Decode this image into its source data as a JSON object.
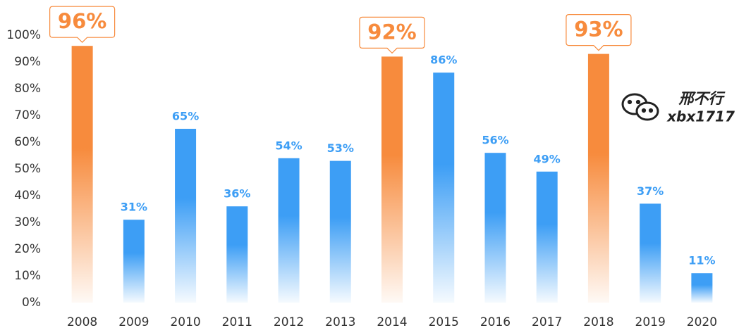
{
  "chart_data": {
    "type": "bar",
    "categories": [
      "2008",
      "2009",
      "2010",
      "2011",
      "2012",
      "2013",
      "2014",
      "2015",
      "2016",
      "2017",
      "2018",
      "2019",
      "2020"
    ],
    "values": [
      96,
      31,
      65,
      36,
      54,
      53,
      92,
      86,
      56,
      49,
      93,
      37,
      11
    ],
    "value_labels": [
      "96%",
      "31%",
      "65%",
      "36%",
      "54%",
      "53%",
      "92%",
      "86%",
      "56%",
      "49%",
      "93%",
      "37%",
      "11%"
    ],
    "colors": [
      "#f78b3d",
      "#3d9ef5",
      "#3d9ef5",
      "#3d9ef5",
      "#3d9ef5",
      "#3d9ef5",
      "#f78b3d",
      "#3d9ef5",
      "#3d9ef5",
      "#3d9ef5",
      "#f78b3d",
      "#3d9ef5",
      "#3d9ef5"
    ],
    "highlight_color": "#f78b3d",
    "ylim": [
      0,
      100
    ],
    "yticks": [
      {
        "value": 0,
        "label": "0%"
      },
      {
        "value": 10,
        "label": "10%"
      },
      {
        "value": 20,
        "label": "20%"
      },
      {
        "value": 30,
        "label": "30%"
      },
      {
        "value": 40,
        "label": "40%"
      },
      {
        "value": 50,
        "label": "50%"
      },
      {
        "value": 60,
        "label": "60%"
      },
      {
        "value": 70,
        "label": "70%"
      },
      {
        "value": 80,
        "label": "80%"
      },
      {
        "value": 90,
        "label": "90%"
      },
      {
        "value": 100,
        "label": "100%"
      }
    ],
    "watermark": {
      "name": "邢不行",
      "id": "xbx1717"
    }
  }
}
